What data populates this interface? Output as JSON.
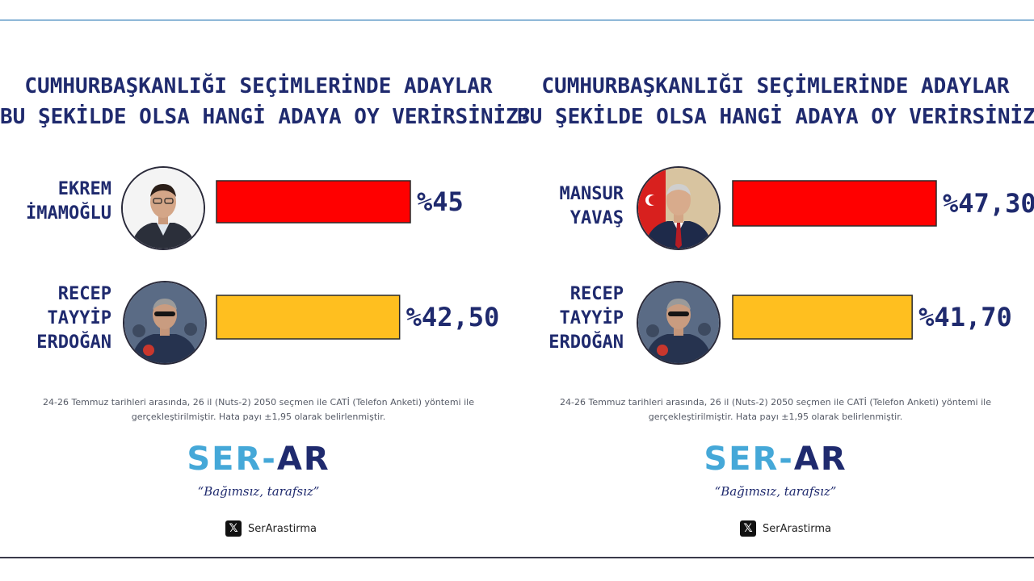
{
  "chart_data": [
    {
      "type": "bar",
      "orientation": "horizontal",
      "title_lines": [
        "CUMHURBAŞKANLIĞI SEÇİMLERİNDE ADAYLAR",
        "BU ŞEKİLDE OLSA HANGİ ADAYA OY VERİRSİNİZ?"
      ],
      "categories": [
        [
          "EKREM",
          "İMAMOĞLU"
        ],
        [
          "RECEP",
          "TAYYİP",
          "ERDOĞAN"
        ]
      ],
      "values": [
        45,
        42.5
      ],
      "value_labels": [
        "%45",
        "%42,50"
      ],
      "colors": [
        "#ff0000",
        "#ffbf1f"
      ]
    },
    {
      "type": "bar",
      "orientation": "horizontal",
      "title_lines": [
        "CUMHURBAŞKANLIĞI SEÇİMLERİNDE ADAYLAR",
        "BU ŞEKİLDE OLSA HANGİ ADAYA OY VERİRSİNİZ?"
      ],
      "categories": [
        [
          "MANSUR",
          "YAVAŞ"
        ],
        [
          "RECEP",
          "TAYYİP",
          "ERDOĞAN"
        ]
      ],
      "values": [
        47.3,
        41.7
      ],
      "value_labels": [
        "%47,30",
        "%41,70"
      ],
      "colors": [
        "#ff0000",
        "#ffbf1f"
      ]
    }
  ],
  "footnote_lines": [
    "24-26 Temmuz tarihleri arasında, 26 il (Nuts-2) 2050 seçmen ile CATİ (Telefon Anketi) yöntemi ile",
    "gerçekleştirilmiştir. Hata payı ±1,95 olarak belirlenmiştir."
  ],
  "logo": {
    "part1": "SER-",
    "part2": "AR"
  },
  "slogan": "“Bağımsız, tarafsız”",
  "social": {
    "icon": "x-logo-icon",
    "glyph": "𝕏",
    "handle": "SerArastirma"
  }
}
